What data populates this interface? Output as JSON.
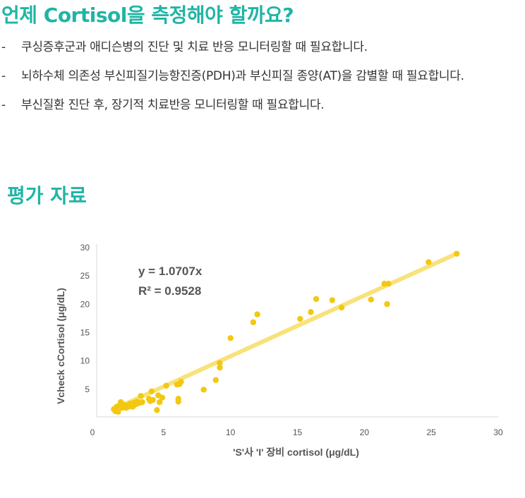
{
  "header": {
    "title": "언제 Cortisol을 측정해야 할까요?"
  },
  "bullets": [
    {
      "dash": "-",
      "text": "쿠싱증후군과 애디슨병의 진단 및 치료 반응 모니터링할 때 필요합니다."
    },
    {
      "dash": "-",
      "text": "뇌하수체 의존성 부신피질기능항진증(PDH)과 부신피질 종양(AT)을 감별할 때 필요합니다."
    },
    {
      "dash": "-",
      "text": "부신질환 진단 후, 장기적 치료반응 모니터링할 때 필요합니다."
    }
  ],
  "section": {
    "title": "평가 자료"
  },
  "chart_data": {
    "type": "scatter",
    "xlabel": "'S'사 'I' 장비 cortisol (μg/dL)",
    "ylabel": "Vcheck cCortisol (μg/dL)",
    "xlim": [
      0,
      30
    ],
    "ylim": [
      0,
      30
    ],
    "xticks": [
      0,
      5,
      10,
      15,
      20,
      25,
      30
    ],
    "yticks": [
      5,
      10,
      15,
      20,
      25,
      30
    ],
    "grid": false,
    "trendline": {
      "slope": 1.0707,
      "intercept": 0
    },
    "annotations": {
      "equation": "y = 1.0707x",
      "r2": "R² = 0.9528"
    },
    "colors": {
      "points": "#f2c811",
      "trendline": "#f8e27a",
      "axis": "#d9d9d9"
    },
    "points": [
      [
        1.3,
        1.4
      ],
      [
        1.4,
        1.0
      ],
      [
        1.5,
        1.8
      ],
      [
        1.6,
        0.9
      ],
      [
        1.7,
        2.0
      ],
      [
        1.8,
        2.6
      ],
      [
        1.9,
        1.6
      ],
      [
        2.0,
        2.2
      ],
      [
        2.1,
        1.9
      ],
      [
        2.2,
        1.6
      ],
      [
        2.3,
        2.0
      ],
      [
        2.4,
        1.8
      ],
      [
        2.5,
        2.3
      ],
      [
        2.6,
        2.1
      ],
      [
        2.7,
        1.8
      ],
      [
        2.8,
        2.5
      ],
      [
        2.9,
        2.2
      ],
      [
        3.0,
        2.7
      ],
      [
        3.1,
        2.4
      ],
      [
        3.2,
        2.5
      ],
      [
        3.3,
        3.7
      ],
      [
        3.4,
        2.6
      ],
      [
        3.9,
        3.2
      ],
      [
        4.0,
        2.8
      ],
      [
        4.1,
        4.5
      ],
      [
        4.2,
        3.0
      ],
      [
        4.5,
        1.2
      ],
      [
        4.6,
        3.8
      ],
      [
        4.7,
        2.6
      ],
      [
        4.9,
        3.4
      ],
      [
        5.2,
        5.5
      ],
      [
        6.0,
        5.7
      ],
      [
        6.1,
        2.7
      ],
      [
        6.1,
        3.2
      ],
      [
        6.2,
        5.8
      ],
      [
        6.3,
        6.2
      ],
      [
        8.0,
        4.8
      ],
      [
        8.9,
        6.5
      ],
      [
        9.2,
        8.7
      ],
      [
        9.2,
        9.5
      ],
      [
        10.0,
        13.9
      ],
      [
        11.7,
        16.7
      ],
      [
        12.0,
        18.1
      ],
      [
        15.2,
        17.3
      ],
      [
        16.0,
        18.5
      ],
      [
        16.4,
        20.8
      ],
      [
        17.6,
        20.6
      ],
      [
        18.3,
        19.3
      ],
      [
        20.5,
        20.7
      ],
      [
        21.5,
        23.5
      ],
      [
        21.7,
        19.9
      ],
      [
        21.8,
        23.5
      ],
      [
        24.8,
        27.3
      ],
      [
        26.9,
        28.8
      ]
    ]
  }
}
